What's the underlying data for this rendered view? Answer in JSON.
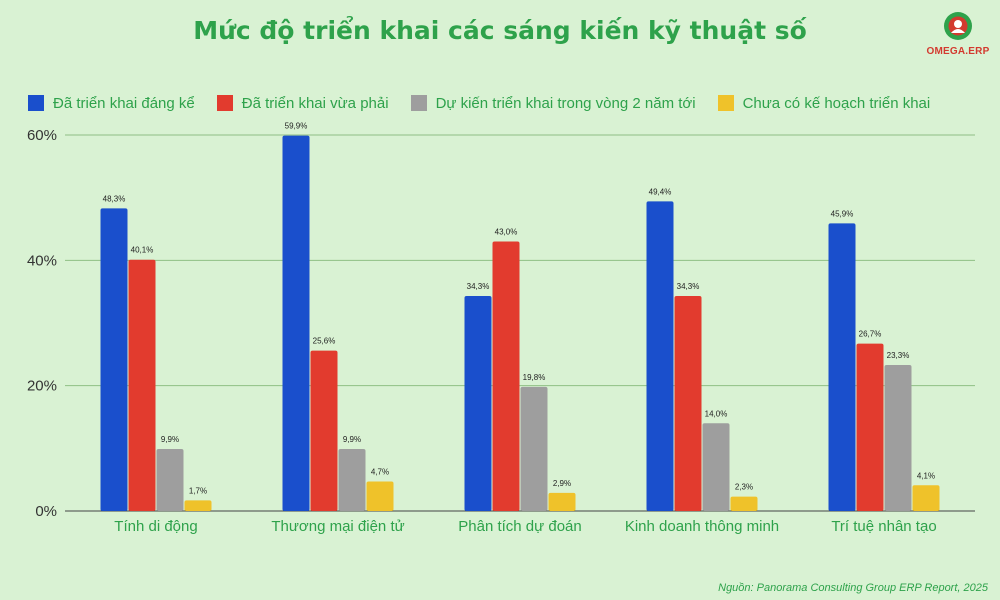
{
  "title": "Mức độ triển khai các sáng kiến kỹ thuật số",
  "logo": {
    "text": "OMEGA.ERP",
    "colors": {
      "red": "#d33a2f",
      "green": "#2ea24b"
    }
  },
  "source": "Nguồn: Panorama Consulting Group ERP Report, 2025",
  "chart_data": {
    "type": "bar",
    "title": "Mức độ triển khai các sáng kiến kỹ thuật số",
    "categories": [
      "Tính di động",
      "Thương mại điện tử",
      "Phân tích dự đoán",
      "Kinh doanh thông minh",
      "Trí tuệ nhân tạo"
    ],
    "series": [
      {
        "name": "Đã triển khai đáng kể",
        "color": "#1a4fcc",
        "values": [
          48.3,
          59.9,
          34.3,
          49.4,
          45.9
        ],
        "labels": [
          "48,3%",
          "59,9%",
          "34,3%",
          "49,4%",
          "45,9%"
        ]
      },
      {
        "name": "Đã triển khai vừa phải",
        "color": "#e23b2e",
        "values": [
          40.1,
          25.6,
          43.0,
          34.3,
          26.7
        ],
        "labels": [
          "40,1%",
          "25,6%",
          "43,0%",
          "34,3%",
          "26,7%"
        ]
      },
      {
        "name": "Dự kiến triển khai trong vòng 2 năm tới",
        "color": "#9e9e9e",
        "values": [
          9.9,
          9.9,
          19.8,
          14.0,
          23.3
        ],
        "labels": [
          "9,9%",
          "9,9%",
          "19,8%",
          "14,0%",
          "23,3%"
        ]
      },
      {
        "name": "Chưa có kế hoạch triển khai",
        "color": "#efc22a",
        "values": [
          1.7,
          4.7,
          2.9,
          2.3,
          4.1
        ],
        "labels": [
          "1,7%",
          "4,7%",
          "2,9%",
          "2,3%",
          "4,1%"
        ]
      }
    ],
    "yticks": [
      0,
      20,
      40,
      60
    ],
    "ytick_labels": [
      "0%",
      "20%",
      "40%",
      "60%"
    ],
    "ylim": [
      0,
      60
    ],
    "grid": true,
    "legend": "top"
  }
}
